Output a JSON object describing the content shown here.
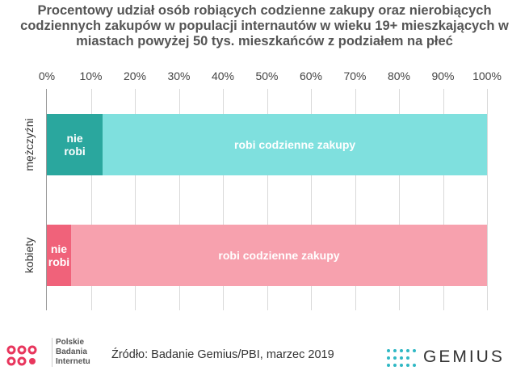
{
  "chart_data": {
    "type": "stacked-bar-horizontal",
    "title": "Procentowy udział osób robiących codzienne zakupy oraz nierobiących codziennych zakupów w populacji internautów w wieku 19+ mieszkających w miastach powyżej 50 tys. mieszkańców z podziałem na płeć",
    "categories": [
      "mężczyźni",
      "kobiety"
    ],
    "series": [
      {
        "name": "nie robi",
        "colors": [
          "#2aa79e",
          "#f0627a"
        ],
        "values": [
          12.7,
          5.5
        ]
      },
      {
        "name": "robi codzienne zakupy",
        "colors": [
          "#7fe0de",
          "#f7a1ae"
        ],
        "values": [
          87.3,
          94.5
        ]
      }
    ],
    "xlim": [
      0,
      100
    ],
    "xticks": [
      {
        "value": 0,
        "label": "0%"
      },
      {
        "value": 10,
        "label": "10%"
      },
      {
        "value": 20,
        "label": "20%"
      },
      {
        "value": 30,
        "label": "30%"
      },
      {
        "value": 40,
        "label": "40%"
      },
      {
        "value": 50,
        "label": "50%"
      },
      {
        "value": 60,
        "label": "60%"
      },
      {
        "value": 70,
        "label": "70%"
      },
      {
        "value": 80,
        "label": "80%"
      },
      {
        "value": 90,
        "label": "90%"
      },
      {
        "value": 100,
        "label": "100%"
      }
    ],
    "grid": true,
    "source": "Źródło: Badanie Gemius/PBI, marzec 2019"
  },
  "footer": {
    "pbi_logo": [
      "Polskie",
      "Badania",
      "Internetu"
    ],
    "gemius_logo": "GEMIUS"
  }
}
